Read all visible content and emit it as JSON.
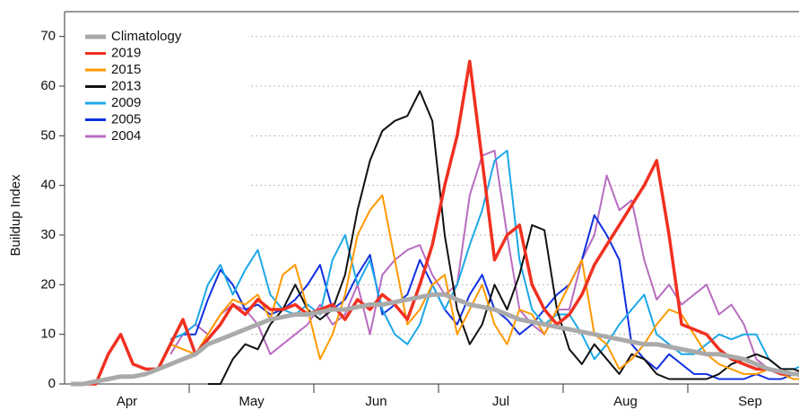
{
  "chart_data": {
    "type": "line",
    "ylabel": "Buildup Index",
    "categories": [
      "Apr",
      "May",
      "Jun",
      "Jul",
      "Aug",
      "Sep"
    ],
    "ylim": [
      0,
      75
    ],
    "yticks": [
      0,
      10,
      20,
      30,
      40,
      50,
      60,
      70
    ],
    "grid": true,
    "legend": "upper left",
    "series": [
      {
        "name": "Climatology",
        "color": "#aaaaaa",
        "values": [
          [
            0,
            0,
            0.5,
            1,
            1.5,
            1.5,
            2,
            3,
            4,
            5
          ],
          [
            6,
            8,
            9,
            10,
            11,
            12,
            13,
            13.5,
            14,
            14
          ],
          [
            14.5,
            15,
            15,
            15.5,
            16,
            16,
            16.5,
            17,
            17.5,
            18
          ],
          [
            18,
            17,
            16,
            15.5,
            15,
            14,
            13,
            12.5,
            12,
            11.5
          ],
          [
            11,
            10.5,
            10,
            9.5,
            9,
            8.5,
            8,
            8,
            7.5,
            7
          ],
          [
            6.5,
            6,
            6,
            5.5,
            5,
            4,
            3,
            2.5,
            2,
            2
          ]
        ]
      },
      {
        "name": "2019",
        "color": "#f03020",
        "values": [
          [
            0,
            0,
            0,
            6,
            10,
            4,
            3,
            3,
            8,
            13
          ],
          [
            6,
            9,
            12,
            16,
            14,
            17,
            15,
            15,
            16,
            14
          ],
          [
            15,
            16,
            13,
            17,
            15,
            18,
            16,
            13,
            20,
            28
          ],
          [
            40,
            50,
            65,
            45,
            25,
            30,
            32,
            20,
            15,
            12
          ],
          [
            14,
            18,
            24,
            28,
            32,
            36,
            40,
            45,
            30,
            12
          ],
          [
            11,
            10,
            7,
            5,
            4,
            3,
            3,
            2,
            2,
            2
          ]
        ]
      },
      {
        "name": "2015",
        "color": "#ff9900",
        "values": [
          [
            null,
            null,
            null,
            null,
            null,
            null,
            null,
            null,
            8,
            7
          ],
          [
            6,
            10,
            14,
            17,
            16,
            18,
            13,
            22,
            24,
            15
          ],
          [
            5,
            10,
            18,
            30,
            35,
            38,
            25,
            12,
            15,
            20
          ],
          [
            22,
            10,
            15,
            20,
            12,
            8,
            15,
            14,
            10,
            15
          ],
          [
            20,
            25,
            10,
            8,
            3,
            5,
            8,
            12,
            15,
            14
          ],
          [
            10,
            6,
            4,
            3,
            2,
            2,
            3,
            2,
            1,
            1
          ]
        ]
      },
      {
        "name": "2013",
        "color": "#111111",
        "values": [
          [
            null,
            null,
            null,
            null,
            null,
            null,
            null,
            null,
            null,
            null
          ],
          [
            null,
            0,
            0,
            5,
            8,
            7,
            12,
            15,
            20,
            15
          ],
          [
            13,
            15,
            22,
            35,
            45,
            51,
            53,
            54,
            59,
            53
          ],
          [
            30,
            15,
            8,
            12,
            20,
            15,
            22,
            32,
            31,
            15
          ],
          [
            7,
            4,
            8,
            5,
            2,
            6,
            5,
            2,
            1,
            1
          ],
          [
            1,
            1,
            2,
            4,
            5,
            6,
            5,
            3,
            3,
            2
          ]
        ]
      },
      {
        "name": "2009",
        "color": "#1ca8e8",
        "values": [
          [
            null,
            null,
            null,
            null,
            null,
            null,
            null,
            null,
            9,
            10
          ],
          [
            12,
            20,
            24,
            18,
            23,
            27,
            18,
            15,
            14,
            16
          ],
          [
            14,
            25,
            30,
            20,
            25,
            15,
            10,
            8,
            12,
            20
          ],
          [
            15,
            20,
            28,
            35,
            45,
            47,
            25,
            15,
            12,
            14
          ],
          [
            14,
            10,
            5,
            8,
            12,
            15,
            18,
            10,
            8,
            6
          ],
          [
            6,
            8,
            10,
            9,
            10,
            10,
            5,
            3,
            3,
            4
          ]
        ]
      },
      {
        "name": "2005",
        "color": "#1030e0",
        "values": [
          [
            null,
            null,
            null,
            null,
            null,
            null,
            null,
            null,
            9,
            10
          ],
          [
            10,
            17,
            23,
            20,
            15,
            16,
            14,
            15,
            17,
            20
          ],
          [
            24,
            15,
            17,
            22,
            26,
            14,
            16,
            18,
            25,
            20
          ],
          [
            15,
            12,
            18,
            22,
            15,
            13,
            10,
            12,
            15,
            18
          ],
          [
            20,
            25,
            34,
            30,
            25,
            8,
            5,
            3,
            6,
            4
          ],
          [
            2,
            2,
            1,
            1,
            1,
            2,
            1,
            1,
            2,
            2
          ]
        ]
      },
      {
        "name": "2004",
        "color": "#b86cc0",
        "values": [
          [
            null,
            null,
            null,
            null,
            null,
            null,
            null,
            null,
            6,
            10
          ],
          [
            12,
            10,
            14,
            16,
            15,
            12,
            6,
            8,
            10,
            12
          ],
          [
            16,
            12,
            14,
            20,
            10,
            22,
            25,
            27,
            28,
            22
          ],
          [
            18,
            20,
            38,
            46,
            47,
            30,
            15,
            12,
            10,
            15
          ],
          [
            15,
            25,
            30,
            42,
            35,
            37,
            25,
            17,
            20,
            16
          ],
          [
            18,
            20,
            14,
            16,
            12,
            5,
            3,
            2,
            2,
            1
          ]
        ]
      }
    ]
  }
}
